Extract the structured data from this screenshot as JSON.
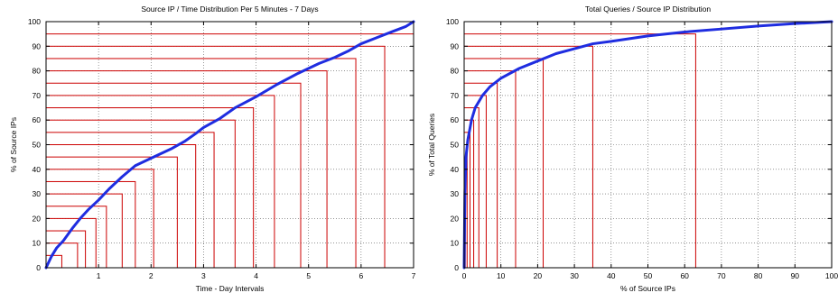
{
  "chart_data": [
    {
      "type": "line",
      "title": "Source IP / Time Distribution Per 5 Minutes - 7 Days",
      "xlabel": "Time - Day Intervals",
      "ylabel": "% of Source IPs",
      "xlim": [
        0,
        7
      ],
      "ylim": [
        0,
        100
      ],
      "x_ticks": [
        1,
        2,
        3,
        4,
        5,
        6,
        7
      ],
      "y_ticks": [
        0,
        10,
        20,
        30,
        40,
        50,
        60,
        70,
        80,
        90,
        100
      ],
      "grid": true,
      "colors": {
        "line": "#1f2de0",
        "steps": "#cc0000",
        "grid": "#555555"
      },
      "series": [
        {
          "x": [
            0,
            0.1,
            0.2,
            0.33,
            0.5,
            0.65,
            0.8,
            1.0,
            1.2,
            1.45,
            1.7,
            2.0,
            2.4,
            2.65,
            2.85,
            3.0,
            3.3,
            3.6,
            4.0,
            4.4,
            4.8,
            5.2,
            5.5,
            5.75,
            6.0,
            6.3,
            6.6,
            6.85,
            7.0
          ],
          "y": [
            0,
            4.5,
            8,
            11,
            16,
            20,
            23.5,
            27.5,
            32,
            37,
            41.5,
            44.5,
            48.5,
            51.5,
            54.5,
            57,
            60.5,
            65,
            69.5,
            74.5,
            79,
            83,
            85.5,
            88,
            91,
            93.5,
            96,
            98,
            100
          ]
        }
      ],
      "steps": [
        {
          "x": 0.3,
          "y": 5
        },
        {
          "x": 0.6,
          "y": 10
        },
        {
          "x": 0.75,
          "y": 15
        },
        {
          "x": 0.95,
          "y": 20
        },
        {
          "x": 1.15,
          "y": 25
        },
        {
          "x": 1.45,
          "y": 30
        },
        {
          "x": 1.7,
          "y": 35
        },
        {
          "x": 2.05,
          "y": 40
        },
        {
          "x": 2.5,
          "y": 45
        },
        {
          "x": 2.85,
          "y": 50
        },
        {
          "x": 3.2,
          "y": 55
        },
        {
          "x": 3.6,
          "y": 60
        },
        {
          "x": 3.95,
          "y": 65
        },
        {
          "x": 4.35,
          "y": 70
        },
        {
          "x": 4.85,
          "y": 75
        },
        {
          "x": 5.35,
          "y": 80
        },
        {
          "x": 5.9,
          "y": 85
        },
        {
          "x": 6.45,
          "y": 90
        },
        {
          "x": 7.0,
          "y": 95
        }
      ]
    },
    {
      "type": "line",
      "title": "Total Queries / Source IP Distribution",
      "xlabel": "% of Source IPs",
      "ylabel": "% of Total Queries",
      "xlim": [
        0,
        100
      ],
      "ylim": [
        0,
        100
      ],
      "x_ticks": [
        0,
        10,
        20,
        30,
        40,
        50,
        60,
        70,
        80,
        90,
        100
      ],
      "y_ticks": [
        0,
        10,
        20,
        30,
        40,
        50,
        60,
        70,
        80,
        90,
        100
      ],
      "grid": true,
      "colors": {
        "line": "#1f2de0",
        "steps": "#cc0000",
        "grid": "#555555"
      },
      "series": [
        {
          "x": [
            0,
            0.2,
            0.5,
            1,
            2,
            3,
            5,
            7,
            10,
            15,
            20,
            25,
            30,
            35,
            40,
            50,
            60,
            70,
            80,
            90,
            100
          ],
          "y": [
            0,
            30,
            45,
            52,
            60,
            65,
            70,
            73.5,
            77,
            81,
            84,
            87,
            89,
            91,
            92,
            94.2,
            95.8,
            97,
            98.2,
            99.2,
            100
          ]
        }
      ],
      "steps": [
        {
          "x": 0.3,
          "y": 30
        },
        {
          "x": 0.8,
          "y": 50
        },
        {
          "x": 1.6,
          "y": 55
        },
        {
          "x": 2.6,
          "y": 60
        },
        {
          "x": 4.0,
          "y": 65
        },
        {
          "x": 6.0,
          "y": 70
        },
        {
          "x": 9.0,
          "y": 75
        },
        {
          "x": 14.0,
          "y": 80
        },
        {
          "x": 21.5,
          "y": 85
        },
        {
          "x": 35.0,
          "y": 90
        },
        {
          "x": 63.0,
          "y": 95
        },
        {
          "x": 100,
          "y": 100
        }
      ]
    }
  ]
}
